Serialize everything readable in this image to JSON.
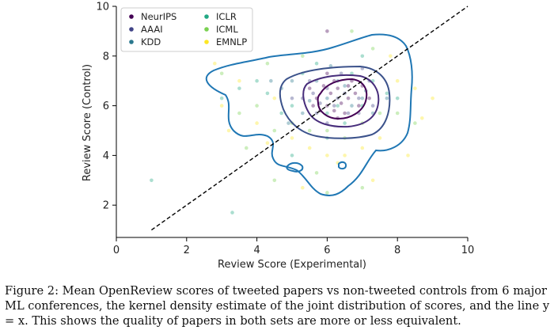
{
  "chart_data": {
    "type": "scatter",
    "xlabel": "Review Score (Experimental)",
    "ylabel": "Review Score (Control)",
    "xlim": [
      0,
      10
    ],
    "ylim": [
      0.7,
      10
    ],
    "x_ticks": [
      0,
      2,
      4,
      6,
      8,
      10
    ],
    "y_ticks": [
      2,
      4,
      6,
      8,
      10
    ],
    "legend_position": "top-left",
    "series": [
      {
        "name": "NeurIPS",
        "color": "#440154",
        "points": [
          [
            5.7,
            6.3
          ],
          [
            6.0,
            6.0
          ],
          [
            6.3,
            6.7
          ],
          [
            6.6,
            6.3
          ],
          [
            6.9,
            6.0
          ],
          [
            5.5,
            6.7
          ],
          [
            6.2,
            7.0
          ],
          [
            6.5,
            5.7
          ],
          [
            6.8,
            6.5
          ],
          [
            5.8,
            5.8
          ],
          [
            6.1,
            6.5
          ],
          [
            6.4,
            6.1
          ],
          [
            7.0,
            6.8
          ],
          [
            6.0,
            7.3
          ],
          [
            5.6,
            6.0
          ],
          [
            6.7,
            7.0
          ],
          [
            6.3,
            5.5
          ],
          [
            6.0,
            9.0
          ],
          [
            7.2,
            6.3
          ],
          [
            5.9,
            6.8
          ],
          [
            6.6,
            6.8
          ],
          [
            6.2,
            5.8
          ]
        ]
      },
      {
        "name": "AAAI",
        "color": "#414487",
        "points": [
          [
            5.3,
            6.3
          ],
          [
            5.7,
            5.7
          ],
          [
            6.3,
            6.3
          ],
          [
            6.9,
            6.3
          ],
          [
            6.0,
            5.3
          ],
          [
            6.6,
            5.7
          ],
          [
            5.5,
            7.0
          ],
          [
            7.2,
            7.0
          ],
          [
            6.0,
            6.7
          ],
          [
            6.4,
            7.3
          ],
          [
            5.8,
            6.1
          ],
          [
            6.9,
            5.7
          ],
          [
            7.0,
            7.5
          ],
          [
            6.2,
            6.0
          ],
          [
            5.0,
            6.3
          ],
          [
            6.5,
            6.5
          ],
          [
            7.3,
            6.0
          ],
          [
            5.6,
            6.5
          ]
        ]
      },
      {
        "name": "KDD",
        "color": "#2a788e",
        "points": [
          [
            4.7,
            6.7
          ],
          [
            5.3,
            5.7
          ],
          [
            5.7,
            7.0
          ],
          [
            6.0,
            6.3
          ],
          [
            6.3,
            7.0
          ],
          [
            6.7,
            6.0
          ],
          [
            7.0,
            6.3
          ],
          [
            7.3,
            5.7
          ],
          [
            5.0,
            7.0
          ],
          [
            6.5,
            6.8
          ],
          [
            4.9,
            5.3
          ],
          [
            7.1,
            6.6
          ],
          [
            5.5,
            6.2
          ],
          [
            6.1,
            7.6
          ],
          [
            4.4,
            7.0
          ],
          [
            7.7,
            6.3
          ]
        ]
      },
      {
        "name": "ICLR",
        "color": "#22a884",
        "points": [
          [
            4.0,
            7.0
          ],
          [
            4.3,
            6.5
          ],
          [
            5.0,
            6.0
          ],
          [
            5.3,
            7.3
          ],
          [
            6.0,
            5.7
          ],
          [
            6.3,
            6.0
          ],
          [
            6.7,
            7.3
          ],
          [
            7.0,
            6.0
          ],
          [
            7.3,
            7.0
          ],
          [
            7.7,
            6.5
          ],
          [
            5.7,
            7.7
          ],
          [
            6.5,
            5.3
          ],
          [
            3.5,
            6.7
          ],
          [
            4.7,
            5.7
          ],
          [
            8.0,
            6.3
          ],
          [
            5.0,
            4.0
          ],
          [
            6.0,
            4.7
          ],
          [
            7.0,
            8.0
          ],
          [
            3.0,
            6.3
          ],
          [
            1.0,
            3.0
          ],
          [
            3.3,
            1.7
          ]
        ]
      },
      {
        "name": "ICML",
        "color": "#7ad151",
        "points": [
          [
            3.0,
            7.3
          ],
          [
            3.5,
            5.7
          ],
          [
            4.0,
            6.0
          ],
          [
            4.5,
            5.0
          ],
          [
            5.0,
            5.3
          ],
          [
            5.5,
            5.0
          ],
          [
            6.0,
            5.0
          ],
          [
            6.5,
            4.7
          ],
          [
            7.0,
            5.3
          ],
          [
            7.5,
            5.7
          ],
          [
            8.0,
            5.7
          ],
          [
            4.3,
            7.7
          ],
          [
            7.3,
            8.3
          ],
          [
            5.3,
            8.0
          ],
          [
            3.7,
            4.3
          ],
          [
            8.5,
            5.3
          ],
          [
            6.7,
            9.0
          ],
          [
            4.5,
            3.0
          ],
          [
            5.7,
            3.3
          ],
          [
            6.0,
            2.5
          ],
          [
            7.0,
            2.7
          ]
        ]
      },
      {
        "name": "EMNLP",
        "color": "#fde725",
        "points": [
          [
            3.0,
            6.0
          ],
          [
            3.5,
            7.0
          ],
          [
            4.0,
            5.3
          ],
          [
            4.5,
            6.3
          ],
          [
            5.0,
            4.7
          ],
          [
            5.5,
            4.3
          ],
          [
            6.0,
            4.0
          ],
          [
            6.5,
            4.0
          ],
          [
            7.0,
            4.3
          ],
          [
            7.5,
            4.7
          ],
          [
            8.0,
            7.0
          ],
          [
            8.5,
            6.7
          ],
          [
            3.2,
            5.0
          ],
          [
            8.7,
            5.5
          ],
          [
            9.0,
            6.3
          ],
          [
            4.3,
            4.5
          ],
          [
            7.3,
            3.0
          ],
          [
            5.3,
            2.7
          ],
          [
            6.3,
            3.7
          ],
          [
            7.8,
            8.0
          ],
          [
            2.8,
            7.7
          ],
          [
            8.3,
            4.0
          ]
        ]
      }
    ],
    "reference_line": {
      "label": "y = x",
      "from": [
        1,
        1
      ],
      "to": [
        10,
        10
      ],
      "color": "#000000",
      "style": "dashed"
    },
    "kde_color": "#1f77b4",
    "kde_line_colors": [
      "#1f77b4",
      "#3b528b",
      "#472d7b",
      "#440154"
    ]
  },
  "caption": "Figure 2: Mean OpenReview scores of tweeted papers vs non-tweeted controls from 6 major ML conferences, the kernel density estimate of the joint distribution of scores, and the line y = x. This shows the quality of papers in both sets are more or less equivalent."
}
